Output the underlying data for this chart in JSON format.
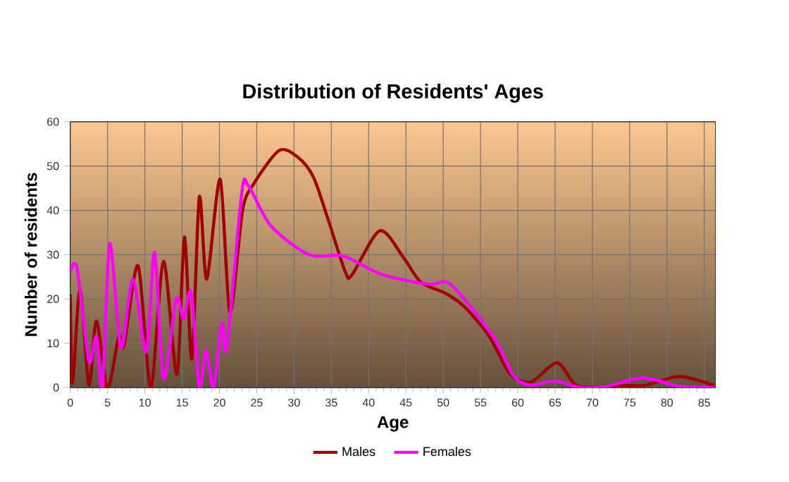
{
  "chart_data": {
    "type": "line",
    "title": "Distribution of Residents' Ages",
    "xlabel": "Age",
    "ylabel": "Number of residents",
    "xlim": [
      0,
      86.5
    ],
    "ylim": [
      0,
      60
    ],
    "xticks": [
      0,
      5,
      10,
      15,
      20,
      25,
      30,
      35,
      40,
      45,
      50,
      55,
      60,
      65,
      70,
      75,
      80,
      85
    ],
    "yticks": [
      0,
      10,
      20,
      30,
      40,
      50,
      60
    ],
    "grid": true,
    "legend": "bottom",
    "marker": "none",
    "line_style": "solid",
    "series": [
      {
        "name": "Males",
        "color": "#a00000",
        "x": [
          0,
          0.3,
          1.3,
          2.5,
          3.5,
          5,
          6.5,
          7.2,
          9.1,
          10.8,
          12.5,
          14.3,
          15.3,
          16.3,
          17.3,
          18.3,
          20.1,
          21.4,
          23.1,
          24.6,
          28,
          30.5,
          32.6,
          34.6,
          36.9,
          37.8,
          41.5,
          44.7,
          47,
          50.4,
          53,
          56.2,
          59,
          61.8,
          65.3,
          68.1,
          73.7,
          77,
          81.7,
          86.3
        ],
        "values": [
          21,
          1,
          22,
          0.5,
          15,
          0,
          11.5,
          9.5,
          27.5,
          0,
          28.5,
          3,
          34,
          6.5,
          43,
          24.5,
          47,
          17,
          40,
          46,
          53.5,
          52,
          47.5,
          37.8,
          26,
          25.5,
          35.4,
          29.3,
          23.8,
          21.2,
          18,
          11.5,
          3,
          1.3,
          5.6,
          0.3,
          0.5,
          0.5,
          2.5,
          0.5
        ]
      },
      {
        "name": "Females",
        "color": "#ff00ff",
        "x": [
          0,
          0.9,
          2.5,
          3.5,
          4.3,
          5.3,
          6.8,
          8.4,
          10.2,
          11.3,
          12.5,
          14.2,
          15.2,
          16.2,
          17.3,
          18.2,
          19.2,
          20.3,
          21,
          23,
          23.9,
          26.9,
          32,
          36.6,
          41.8,
          48.1,
          51,
          56.7,
          59.5,
          61.8,
          65,
          68.4,
          72,
          76.8,
          81.7,
          86.3
        ],
        "values": [
          26,
          27,
          6,
          11.5,
          0,
          32.5,
          9,
          24.5,
          8,
          30.5,
          2,
          20,
          15.5,
          21.5,
          0,
          8.5,
          0,
          14.5,
          9,
          44,
          45.5,
          36.5,
          30,
          29.7,
          25.5,
          23.3,
          23.3,
          11.5,
          2.5,
          0.5,
          1.5,
          0,
          0.3,
          2.2,
          0.3,
          0
        ]
      }
    ]
  }
}
